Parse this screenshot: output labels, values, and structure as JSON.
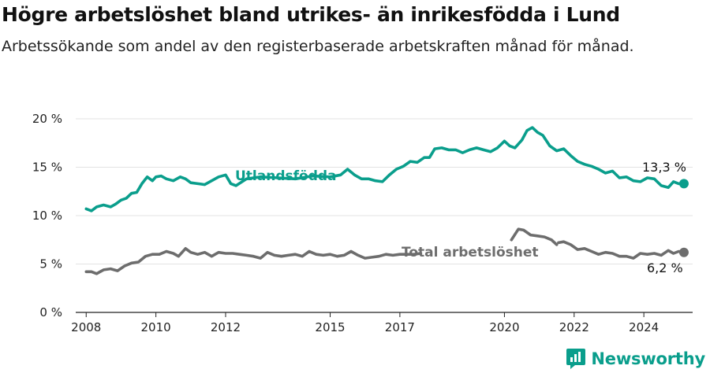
{
  "title": "Högre arbetslöshet bland utrikes- än inrikesfödda i Lund",
  "subtitle": "Arbetssökande som andel av den registerbaserade arbetskraften månad för månad.",
  "brand": {
    "name": "Newsworthy"
  },
  "colors": {
    "utlandsfodda": "#0a9e8c",
    "total": "#6d6d6d",
    "grid": "#e3e3e3",
    "axis": "#222222"
  },
  "chart_data": {
    "type": "line",
    "xlabel": "",
    "ylabel": "",
    "xlim": [
      2007.7,
      2025.4
    ],
    "ylim": [
      0,
      20
    ],
    "y_ticks": [
      0,
      5,
      10,
      15,
      20
    ],
    "y_tick_labels": [
      "0 %",
      "5 %",
      "10 %",
      "15 %",
      "20 %"
    ],
    "x_ticks": [
      2008,
      2010,
      2012,
      2015,
      2017,
      2020,
      2022,
      2024
    ],
    "x_tick_labels": [
      "2008",
      "2010",
      "2012",
      "2015",
      "2017",
      "2020",
      "2022",
      "2024"
    ],
    "grid": true,
    "series": [
      {
        "name": "Utlandsfödda",
        "key": "utl",
        "end_label": "13,3 %",
        "points": [
          [
            2008.0,
            10.7
          ],
          [
            2008.15,
            10.5
          ],
          [
            2008.3,
            10.9
          ],
          [
            2008.5,
            11.1
          ],
          [
            2008.7,
            10.9
          ],
          [
            2008.85,
            11.2
          ],
          [
            2009.0,
            11.6
          ],
          [
            2009.15,
            11.8
          ],
          [
            2009.3,
            12.3
          ],
          [
            2009.45,
            12.4
          ],
          [
            2009.6,
            13.3
          ],
          [
            2009.75,
            14.0
          ],
          [
            2009.9,
            13.6
          ],
          [
            2010.0,
            14.0
          ],
          [
            2010.15,
            14.1
          ],
          [
            2010.3,
            13.8
          ],
          [
            2010.5,
            13.6
          ],
          [
            2010.7,
            14.0
          ],
          [
            2010.85,
            13.8
          ],
          [
            2011.0,
            13.4
          ],
          [
            2011.2,
            13.3
          ],
          [
            2011.4,
            13.2
          ],
          [
            2011.6,
            13.6
          ],
          [
            2011.8,
            14.0
          ],
          [
            2012.0,
            14.2
          ],
          [
            2012.15,
            13.3
          ],
          [
            2012.3,
            13.1
          ],
          [
            2012.6,
            13.8
          ],
          [
            2013.0,
            14.0
          ],
          [
            2013.5,
            13.9
          ],
          [
            2014.0,
            13.8
          ],
          [
            2014.5,
            14.1
          ],
          [
            2015.0,
            14.0
          ],
          [
            2015.3,
            14.2
          ],
          [
            2015.5,
            14.8
          ],
          [
            2015.7,
            14.2
          ],
          [
            2015.9,
            13.8
          ],
          [
            2016.1,
            13.8
          ],
          [
            2016.3,
            13.6
          ],
          [
            2016.5,
            13.5
          ],
          [
            2016.7,
            14.2
          ],
          [
            2016.9,
            14.8
          ],
          [
            2017.1,
            15.1
          ],
          [
            2017.3,
            15.6
          ],
          [
            2017.5,
            15.5
          ],
          [
            2017.7,
            16.0
          ],
          [
            2017.85,
            16.0
          ],
          [
            2018.0,
            16.9
          ],
          [
            2018.2,
            17.0
          ],
          [
            2018.4,
            16.8
          ],
          [
            2018.6,
            16.8
          ],
          [
            2018.8,
            16.5
          ],
          [
            2019.0,
            16.8
          ],
          [
            2019.2,
            17.0
          ],
          [
            2019.4,
            16.8
          ],
          [
            2019.6,
            16.6
          ],
          [
            2019.8,
            17.0
          ],
          [
            2020.0,
            17.7
          ],
          [
            2020.15,
            17.2
          ],
          [
            2020.3,
            17.0
          ],
          [
            2020.5,
            17.8
          ],
          [
            2020.65,
            18.8
          ],
          [
            2020.8,
            19.1
          ],
          [
            2020.95,
            18.6
          ],
          [
            2021.1,
            18.3
          ],
          [
            2021.3,
            17.2
          ],
          [
            2021.5,
            16.7
          ],
          [
            2021.7,
            16.9
          ],
          [
            2021.9,
            16.2
          ],
          [
            2022.1,
            15.6
          ],
          [
            2022.3,
            15.3
          ],
          [
            2022.5,
            15.1
          ],
          [
            2022.7,
            14.8
          ],
          [
            2022.9,
            14.4
          ],
          [
            2023.1,
            14.6
          ],
          [
            2023.3,
            13.9
          ],
          [
            2023.5,
            14.0
          ],
          [
            2023.7,
            13.6
          ],
          [
            2023.9,
            13.5
          ],
          [
            2024.1,
            13.9
          ],
          [
            2024.3,
            13.8
          ],
          [
            2024.5,
            13.1
          ],
          [
            2024.7,
            12.9
          ],
          [
            2024.85,
            13.5
          ],
          [
            2025.0,
            13.3
          ],
          [
            2025.15,
            13.3
          ]
        ]
      },
      {
        "name": "Total arbetslöshet",
        "key": "tot",
        "end_label": "6,2 %",
        "points": [
          [
            2008.0,
            4.2
          ],
          [
            2008.15,
            4.2
          ],
          [
            2008.3,
            4.0
          ],
          [
            2008.5,
            4.4
          ],
          [
            2008.7,
            4.5
          ],
          [
            2008.9,
            4.3
          ],
          [
            2009.1,
            4.8
          ],
          [
            2009.3,
            5.1
          ],
          [
            2009.5,
            5.2
          ],
          [
            2009.7,
            5.8
          ],
          [
            2009.9,
            6.0
          ],
          [
            2010.1,
            6.0
          ],
          [
            2010.3,
            6.3
          ],
          [
            2010.5,
            6.1
          ],
          [
            2010.65,
            5.8
          ],
          [
            2010.85,
            6.6
          ],
          [
            2011.0,
            6.2
          ],
          [
            2011.2,
            6.0
          ],
          [
            2011.4,
            6.2
          ],
          [
            2011.6,
            5.8
          ],
          [
            2011.8,
            6.2
          ],
          [
            2012.0,
            6.1
          ],
          [
            2012.2,
            6.1
          ],
          [
            2012.4,
            6.0
          ],
          [
            2012.6,
            5.9
          ],
          [
            2012.8,
            5.8
          ],
          [
            2013.0,
            5.6
          ],
          [
            2013.2,
            6.2
          ],
          [
            2013.4,
            5.9
          ],
          [
            2013.6,
            5.8
          ],
          [
            2013.8,
            5.9
          ],
          [
            2014.0,
            6.0
          ],
          [
            2014.2,
            5.8
          ],
          [
            2014.4,
            6.3
          ],
          [
            2014.6,
            6.0
          ],
          [
            2014.8,
            5.9
          ],
          [
            2015.0,
            6.0
          ],
          [
            2015.2,
            5.8
          ],
          [
            2015.4,
            5.9
          ],
          [
            2015.6,
            6.3
          ],
          [
            2015.8,
            5.9
          ],
          [
            2016.0,
            5.6
          ],
          [
            2016.2,
            5.7
          ],
          [
            2016.4,
            5.8
          ],
          [
            2016.6,
            6.0
          ],
          [
            2016.8,
            5.9
          ],
          [
            2017.0,
            6.0
          ],
          [
            2017.2,
            6.0
          ],
          [
            2017.4,
            6.0
          ],
          [
            2017.6,
            6.1
          ]
        ],
        "segments": [
          [
            [
              2020.2,
              7.5
            ],
            [
              2020.4,
              8.6
            ],
            [
              2020.55,
              8.5
            ],
            [
              2020.75,
              8.0
            ],
            [
              2020.95,
              7.9
            ],
            [
              2021.15,
              7.8
            ],
            [
              2021.35,
              7.5
            ],
            [
              2021.5,
              7.0
            ]
          ],
          [
            [
              2021.55,
              7.2
            ],
            [
              2021.7,
              7.3
            ],
            [
              2021.9,
              7.0
            ],
            [
              2022.1,
              6.5
            ],
            [
              2022.3,
              6.6
            ],
            [
              2022.5,
              6.3
            ],
            [
              2022.7,
              6.0
            ],
            [
              2022.9,
              6.2
            ],
            [
              2023.1,
              6.1
            ],
            [
              2023.3,
              5.8
            ],
            [
              2023.5,
              5.8
            ],
            [
              2023.7,
              5.6
            ],
            [
              2023.9,
              6.1
            ],
            [
              2024.1,
              6.0
            ],
            [
              2024.3,
              6.1
            ],
            [
              2024.5,
              5.9
            ],
            [
              2024.7,
              6.4
            ],
            [
              2024.85,
              6.1
            ],
            [
              2025.0,
              6.3
            ],
            [
              2025.15,
              6.2
            ]
          ]
        ]
      }
    ]
  }
}
